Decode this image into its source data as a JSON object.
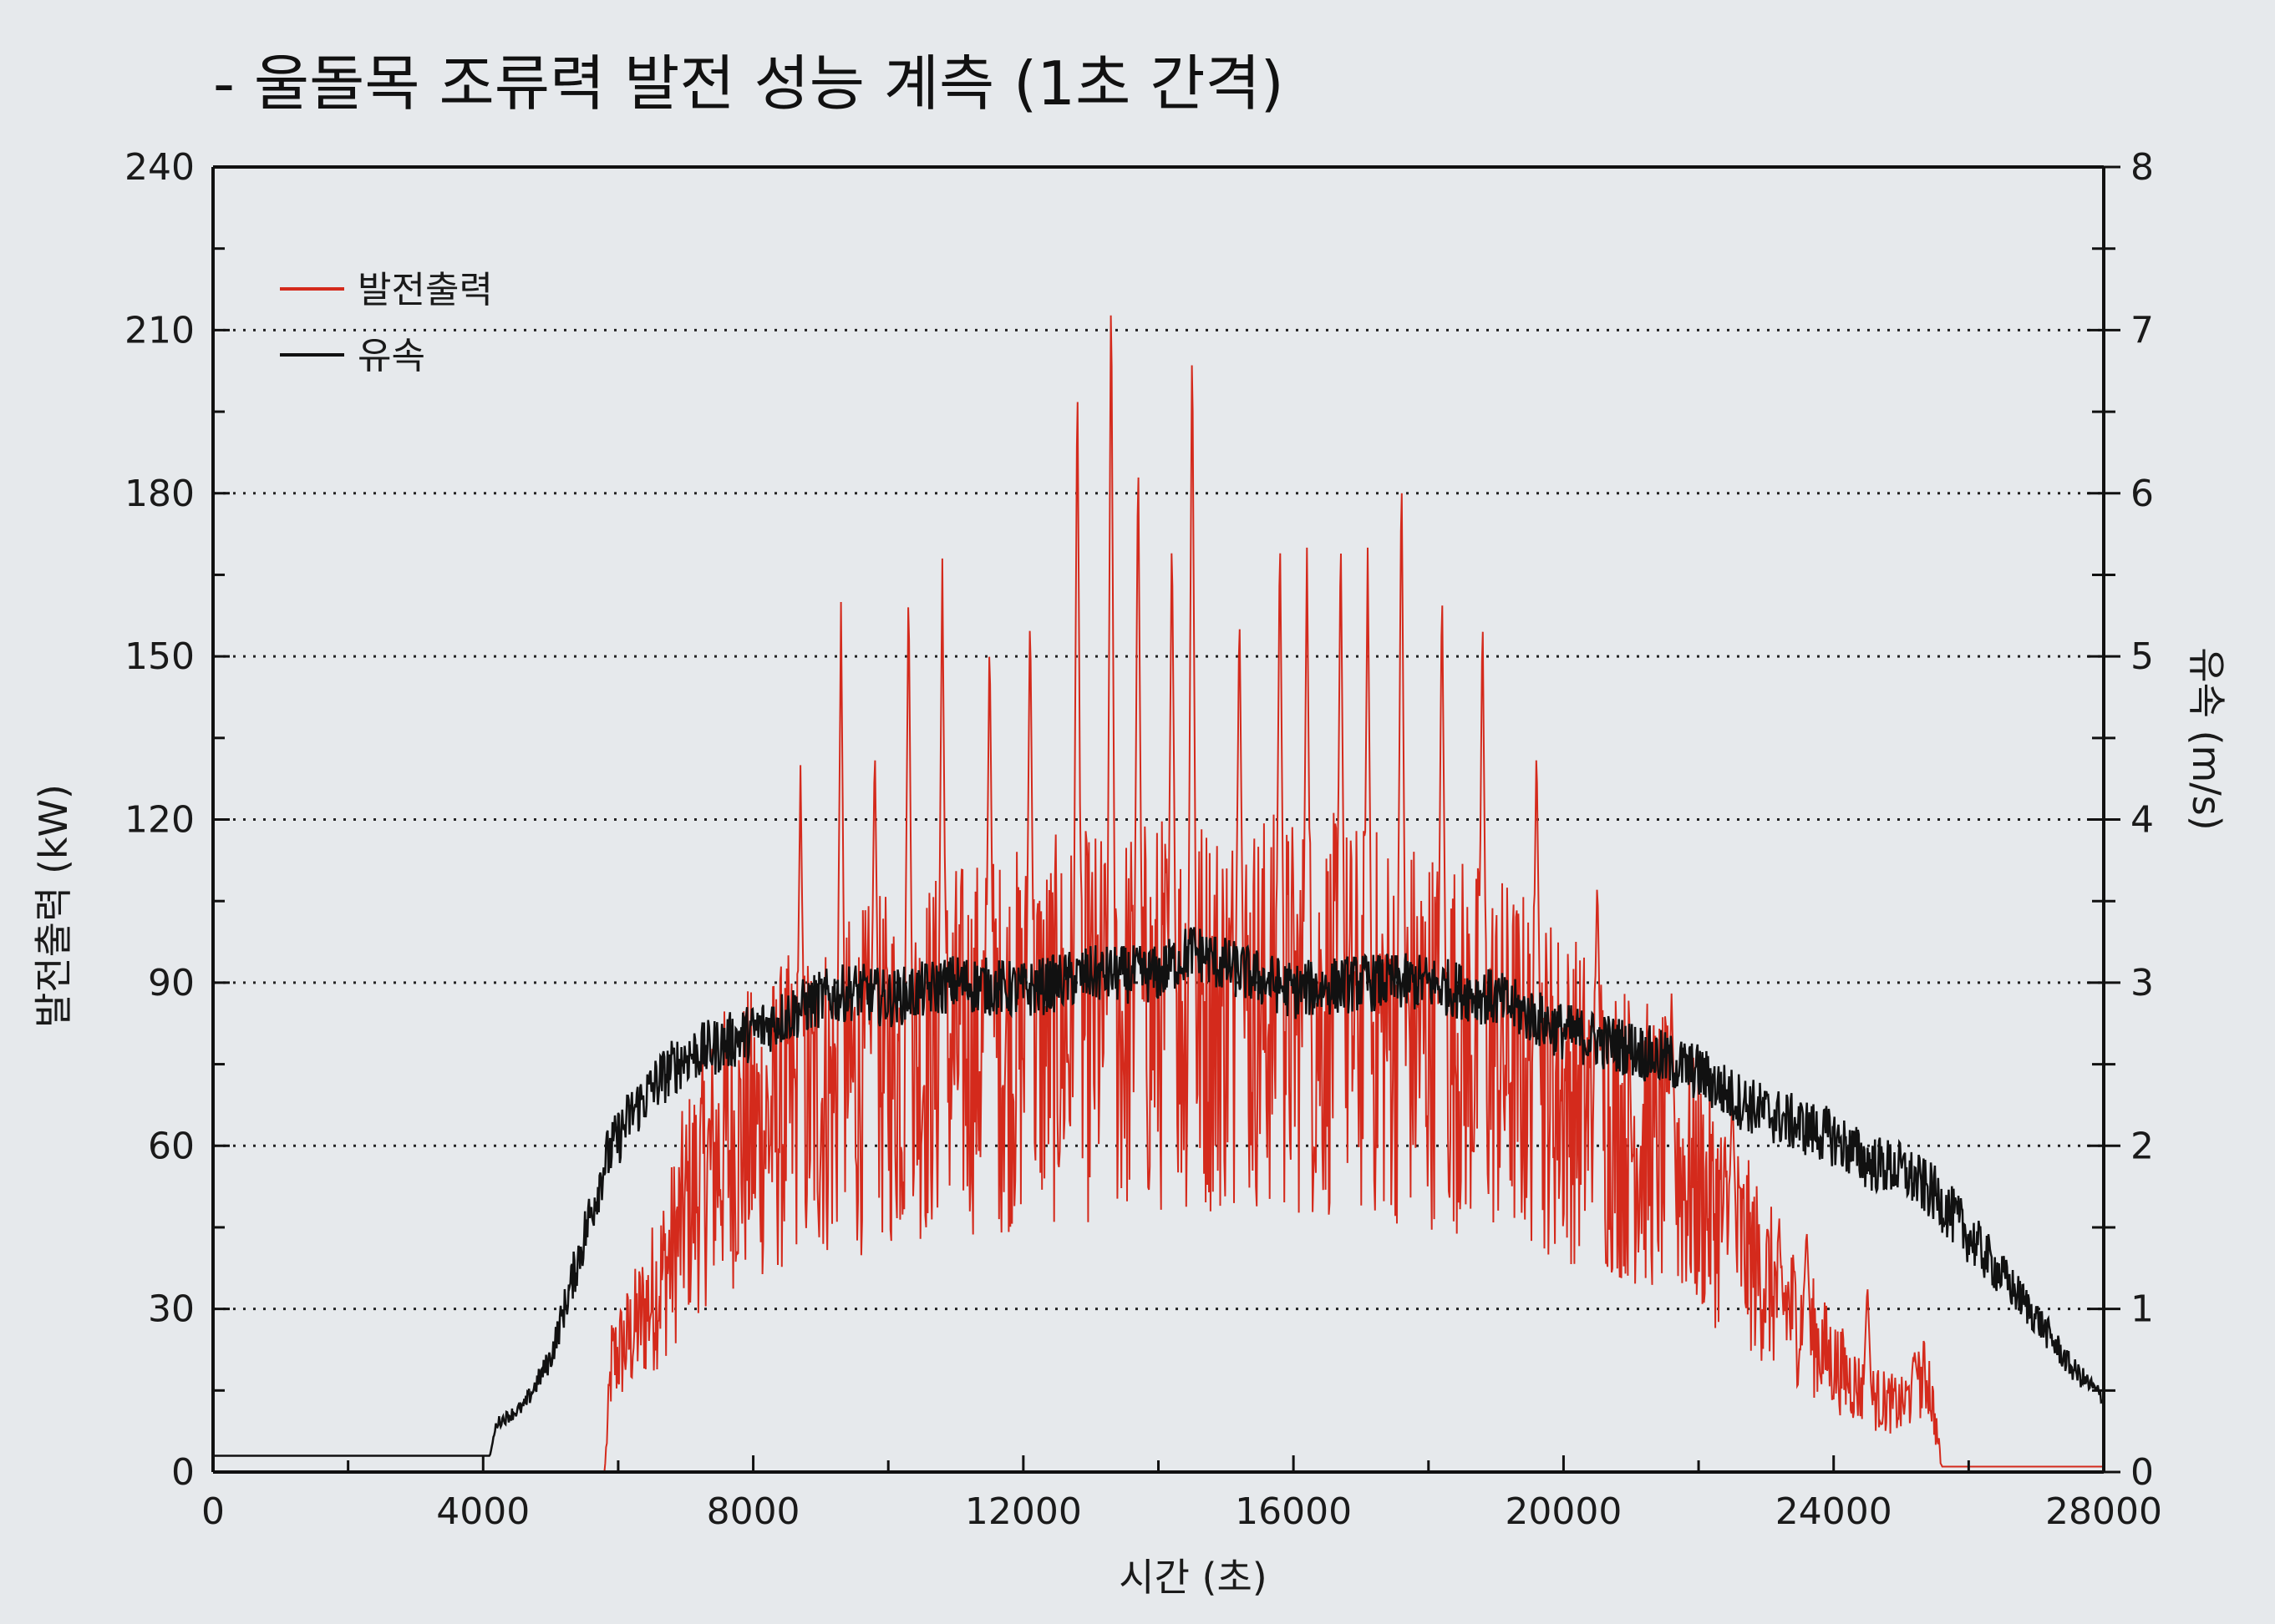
{
  "chart_data": {
    "type": "line",
    "title": "- 울돌목 조류력 발전 성능 계측 (1초 간격)",
    "xlabel": "시간 (초)",
    "ylabel": "발전출력 (kW)",
    "y2label": "유속 (m/s)",
    "xlim": [
      0,
      28000
    ],
    "ylim": [
      0,
      240
    ],
    "y2lim": [
      0,
      8
    ],
    "x_ticks": [
      0,
      4000,
      8000,
      12000,
      16000,
      20000,
      24000,
      28000
    ],
    "y_ticks": [
      0,
      30,
      60,
      90,
      120,
      150,
      180,
      210,
      240
    ],
    "y2_ticks": [
      0,
      1,
      2,
      3,
      4,
      5,
      6,
      7,
      8
    ],
    "grid": "horizontal-dotted",
    "legend_position": "top-left",
    "series": [
      {
        "name": "발전출력",
        "color": "#d42a1c",
        "axis": "left",
        "x": [
          0,
          5800,
          5900,
          6200,
          6500,
          6800,
          7000,
          7300,
          7600,
          8000,
          8400,
          8800,
          9200,
          9600,
          10000,
          10500,
          11000,
          11500,
          12000,
          12500,
          13000,
          13500,
          14000,
          14500,
          15000,
          15500,
          16000,
          16500,
          17000,
          17500,
          18000,
          18500,
          19000,
          19500,
          20000,
          20500,
          21000,
          21500,
          22000,
          22500,
          23000,
          23500,
          24000,
          24500,
          25000,
          25400,
          25600,
          28000
        ],
        "y": [
          0,
          0,
          20,
          25,
          32,
          40,
          48,
          55,
          60,
          62,
          65,
          68,
          70,
          72,
          74,
          76,
          78,
          79,
          80,
          81,
          82,
          83,
          84,
          85,
          85,
          85,
          84,
          84,
          83,
          82,
          81,
          79,
          77,
          74,
          70,
          66,
          62,
          58,
          52,
          44,
          35,
          28,
          20,
          14,
          12,
          18,
          1,
          1
        ],
        "peaks": [
          [
            8700,
            130
          ],
          [
            9300,
            160
          ],
          [
            9800,
            135
          ],
          [
            10300,
            165
          ],
          [
            10800,
            168
          ],
          [
            11500,
            155
          ],
          [
            12100,
            160
          ],
          [
            12800,
            205
          ],
          [
            13300,
            222
          ],
          [
            13700,
            190
          ],
          [
            14200,
            175
          ],
          [
            14500,
            212
          ],
          [
            15200,
            160
          ],
          [
            15800,
            175
          ],
          [
            16200,
            170
          ],
          [
            16700,
            175
          ],
          [
            17100,
            170
          ],
          [
            17600,
            187
          ],
          [
            18200,
            165
          ],
          [
            18800,
            160
          ],
          [
            19600,
            135
          ],
          [
            20500,
            110
          ],
          [
            21600,
            88
          ],
          [
            22500,
            70
          ],
          [
            23600,
            45
          ],
          [
            24500,
            35
          ],
          [
            25200,
            22
          ]
        ]
      },
      {
        "name": "유속",
        "color": "#111111",
        "axis": "right",
        "x": [
          0,
          4100,
          4200,
          4600,
          5000,
          5400,
          5800,
          6200,
          6600,
          7000,
          7400,
          8000,
          8500,
          9000,
          9500,
          10000,
          11000,
          12000,
          13000,
          14000,
          14500,
          15000,
          16000,
          17000,
          18000,
          19000,
          20000,
          21000,
          22000,
          22500,
          23000,
          24000,
          24500,
          25000,
          25500,
          26000,
          26500,
          27000,
          27500,
          28000
        ],
        "y": [
          0.1,
          0.1,
          0.3,
          0.4,
          0.7,
          1.3,
          1.9,
          2.2,
          2.4,
          2.55,
          2.6,
          2.7,
          2.8,
          2.9,
          2.95,
          2.9,
          3.0,
          2.95,
          3.05,
          3.05,
          3.2,
          3.1,
          2.95,
          3.0,
          3.0,
          2.9,
          2.7,
          2.6,
          2.45,
          2.3,
          2.2,
          2.05,
          1.9,
          1.85,
          1.7,
          1.45,
          1.2,
          0.95,
          0.65,
          0.45
        ]
      }
    ]
  }
}
